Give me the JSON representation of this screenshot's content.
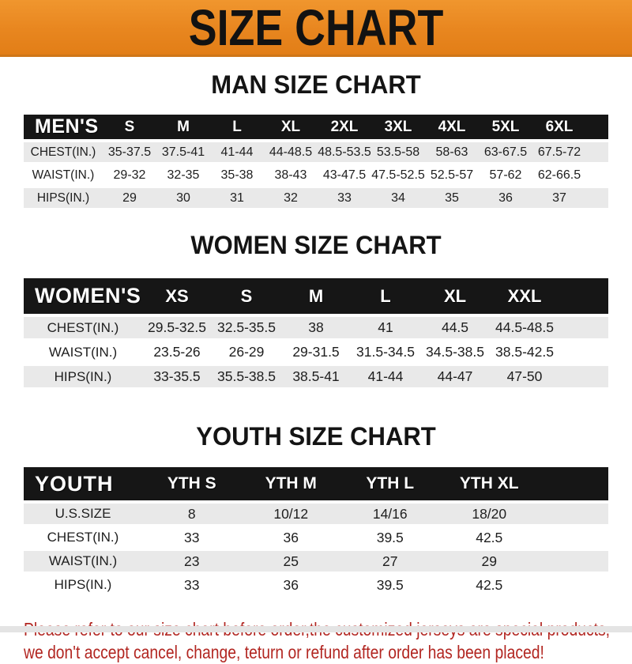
{
  "banner": {
    "title": "SIZE CHART"
  },
  "colors": {
    "banner_orange": "#E8861F",
    "header_bar_black": "#161616",
    "stripe_gray": "#E9E9E9",
    "disclaimer_red": "#B22621"
  },
  "chart_data": [
    {
      "type": "table",
      "title": "MAN SIZE CHART",
      "label": "MEN'S",
      "columns": [
        "S",
        "M",
        "L",
        "XL",
        "2XL",
        "3XL",
        "4XL",
        "5XL",
        "6XL"
      ],
      "rows": [
        {
          "label": "CHEST(IN.)",
          "values": [
            "35-37.5",
            "37.5-41",
            "41-44",
            "44-48.5",
            "48.5-53.5",
            "53.5-58",
            "58-63",
            "63-67.5",
            "67.5-72"
          ]
        },
        {
          "label": "WAIST(IN.)",
          "values": [
            "29-32",
            "32-35",
            "35-38",
            "38-43",
            "43-47.5",
            "47.5-52.5",
            "52.5-57",
            "57-62",
            "62-66.5"
          ]
        },
        {
          "label": "HIPS(IN.)",
          "values": [
            "29",
            "30",
            "31",
            "32",
            "33",
            "34",
            "35",
            "36",
            "37"
          ]
        }
      ]
    },
    {
      "type": "table",
      "title": "WOMEN SIZE CHART",
      "label": "WOMEN'S",
      "columns": [
        "XS",
        "S",
        "M",
        "L",
        "XL",
        "XXL"
      ],
      "rows": [
        {
          "label": "CHEST(IN.)",
          "values": [
            "29.5-32.5",
            "32.5-35.5",
            "38",
            "41",
            "44.5",
            "44.5-48.5"
          ]
        },
        {
          "label": "WAIST(IN.)",
          "values": [
            "23.5-26",
            "26-29",
            "29-31.5",
            "31.5-34.5",
            "34.5-38.5",
            "38.5-42.5"
          ]
        },
        {
          "label": "HIPS(IN.)",
          "values": [
            "33-35.5",
            "35.5-38.5",
            "38.5-41",
            "41-44",
            "44-47",
            "47-50"
          ]
        }
      ]
    },
    {
      "type": "table",
      "title": "YOUTH SIZE CHART",
      "label": "YOUTH",
      "columns": [
        "YTH S",
        "YTH M",
        "YTH L",
        "YTH XL"
      ],
      "rows": [
        {
          "label": "U.S.SIZE",
          "values": [
            "8",
            "10/12",
            "14/16",
            "18/20"
          ]
        },
        {
          "label": "CHEST(IN.)",
          "values": [
            "33",
            "36",
            "39.5",
            "42.5"
          ]
        },
        {
          "label": "WAIST(IN.)",
          "values": [
            "23",
            "25",
            "27",
            "29"
          ]
        },
        {
          "label": "HIPS(IN.)",
          "values": [
            "33",
            "36",
            "39.5",
            "42.5"
          ]
        }
      ]
    }
  ],
  "disclaimer": {
    "line1": "Please refer to our size chart before order,the customized jerseys are special products,",
    "line2": "we don't accept cancel, change, teturn or refund after order has been placed!"
  }
}
